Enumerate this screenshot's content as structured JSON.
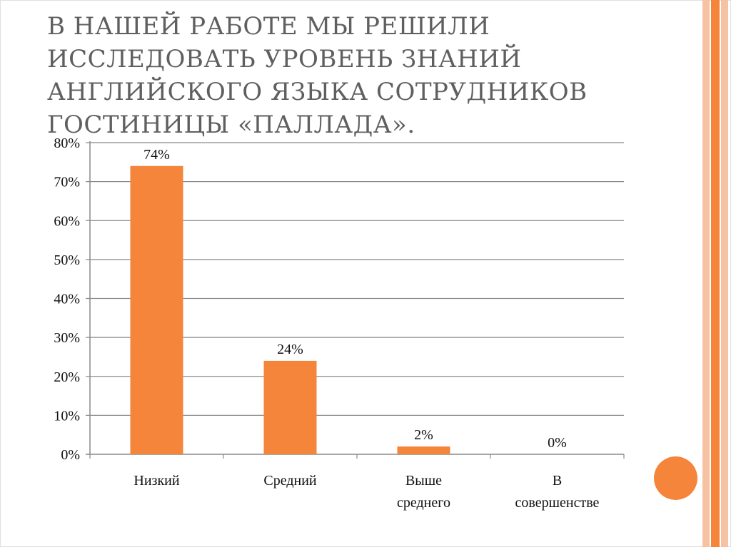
{
  "slide": {
    "title": "В нашей работе мы решили исследовать уровень знаний английского языка сотрудников гостиницы «Паллада».",
    "accent_color": "#f5853a",
    "stripe_colors": [
      "#f7c2a3",
      "#f5853a",
      "#f7c2a3"
    ]
  },
  "chart_data": {
    "type": "bar",
    "categories": [
      "Низкий",
      "Средний",
      "Выше среднего",
      "В совершенстве"
    ],
    "category_lines": [
      [
        "Низкий"
      ],
      [
        "Средний"
      ],
      [
        "Выше",
        "среднего"
      ],
      [
        "В",
        "совершенстве"
      ]
    ],
    "values": [
      74,
      24,
      2,
      0
    ],
    "data_labels": [
      "74%",
      "24%",
      "2%",
      "0%"
    ],
    "ylim": [
      0,
      80
    ],
    "yticks": [
      0,
      10,
      20,
      30,
      40,
      50,
      60,
      70,
      80
    ],
    "ytick_labels": [
      "0%",
      "10%",
      "20%",
      "30%",
      "40%",
      "50%",
      "60%",
      "70%",
      "80%"
    ],
    "grid": true,
    "bar_color": "#f5853a",
    "title": "",
    "xlabel": "",
    "ylabel": ""
  }
}
